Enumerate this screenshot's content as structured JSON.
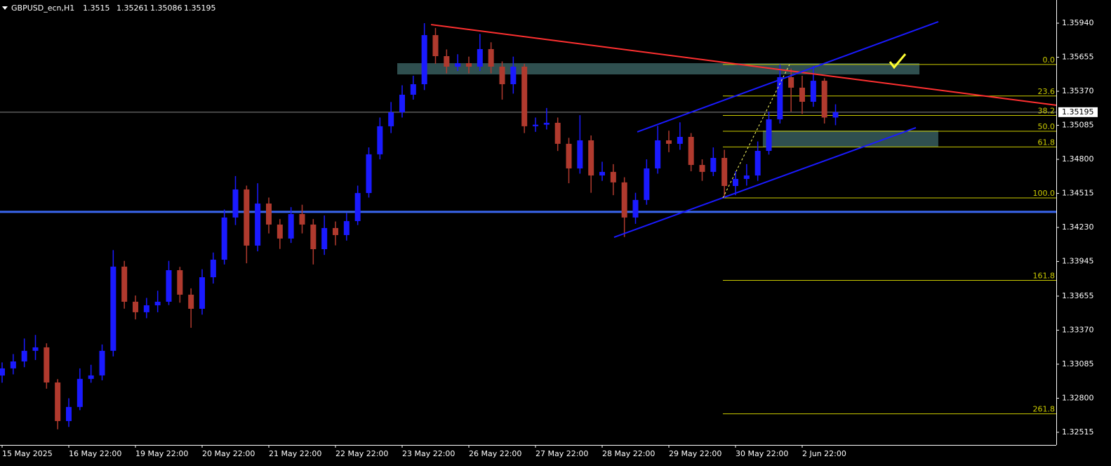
{
  "chart_data": {
    "type": "candlestick",
    "title": "GBPUSD_ecn,H1",
    "categories": [
      "15 May 2025",
      null,
      null,
      null,
      null,
      null,
      "16 May 22:00",
      null,
      null,
      null,
      null,
      null,
      "19 May 22:00",
      null,
      null,
      null,
      null,
      null,
      "20 May 22:00",
      null,
      null,
      null,
      null,
      null,
      "21 May 22:00",
      null,
      null,
      null,
      null,
      null,
      "22 May 22:00",
      null,
      null,
      null,
      null,
      null,
      "23 May 22:00",
      null,
      null,
      null,
      null,
      null,
      "26 May 22:00",
      null,
      null,
      null,
      null,
      null,
      "27 May 22:00",
      null,
      null,
      null,
      null,
      null,
      "28 May 22:00",
      null,
      null,
      null,
      null,
      null,
      "29 May 22:00",
      null,
      null,
      null,
      null,
      null,
      "30 May 22:00",
      null,
      null,
      null,
      null,
      null,
      "2 Jun 22:00",
      null,
      null,
      null
    ],
    "open": [
      1.3299,
      1.3305,
      1.33108,
      1.33197,
      1.33226,
      1.32932,
      1.32609,
      1.32727,
      1.32962,
      1.32991,
      1.33197,
      1.33902,
      1.33608,
      1.3352,
      1.33578,
      1.33608,
      1.33872,
      1.33667,
      1.33549,
      1.33813,
      1.3396,
      1.34313,
      1.34548,
      1.34078,
      1.3443,
      1.34254,
      1.34137,
      1.34342,
      1.34254,
      1.34048,
      1.34225,
      1.34166,
      1.34283,
      1.34518,
      1.34842,
      1.35077,
      1.35194,
      1.35341,
      1.35429,
      1.3584,
      1.35664,
      1.35576,
      1.35605,
      1.35576,
      1.35723,
      1.35576,
      1.35429,
      1.35576,
      1.35077,
      1.3509,
      1.35106,
      1.3493,
      1.34724,
      1.34959,
      1.34665,
      1.34695,
      1.34607,
      1.34313,
      1.3446,
      1.34724,
      1.34959,
      1.3493,
      1.34988,
      1.34753,
      1.34695,
      1.34812,
      1.34577,
      1.34636,
      1.34665,
      1.34871,
      1.35135,
      1.35488,
      1.354,
      1.35282,
      1.35458,
      1.3515
    ],
    "high": [
      1.331,
      1.3317,
      1.333,
      1.3333,
      1.3326,
      1.3296,
      1.328,
      1.3305,
      1.3308,
      1.3325,
      1.3404,
      1.3395,
      1.3366,
      1.3364,
      1.337,
      1.3395,
      1.339,
      1.3372,
      1.3388,
      1.3402,
      1.3438,
      1.3466,
      1.3458,
      1.346,
      1.3448,
      1.343,
      1.344,
      1.3442,
      1.343,
      1.3433,
      1.3428,
      1.3435,
      1.3458,
      1.349,
      1.3515,
      1.3528,
      1.3542,
      1.355,
      1.3594,
      1.359,
      1.3572,
      1.3568,
      1.3566,
      1.3585,
      1.3578,
      1.3562,
      1.3566,
      1.356,
      1.3515,
      1.3523,
      1.3515,
      1.3498,
      1.3517,
      1.35,
      1.3478,
      1.3476,
      1.3465,
      1.3452,
      1.348,
      1.3508,
      1.3504,
      1.3511,
      1.3502,
      1.348,
      1.349,
      1.3488,
      1.347,
      1.3476,
      1.3495,
      1.352,
      1.35594,
      1.3556,
      1.355,
      1.3558,
      1.3548,
      1.35261
    ],
    "low": [
      1.3293,
      1.33,
      1.3306,
      1.3312,
      1.3288,
      1.3254,
      1.3256,
      1.327,
      1.3293,
      1.3295,
      1.3315,
      1.3355,
      1.3346,
      1.3347,
      1.3352,
      1.3358,
      1.336,
      1.3339,
      1.335,
      1.3376,
      1.3392,
      1.3425,
      1.3393,
      1.3403,
      1.3418,
      1.3405,
      1.341,
      1.3418,
      1.3392,
      1.34,
      1.3408,
      1.3412,
      1.3425,
      1.3448,
      1.348,
      1.3502,
      1.3515,
      1.353,
      1.3538,
      1.356,
      1.3552,
      1.3554,
      1.3552,
      1.3554,
      1.3552,
      1.353,
      1.3535,
      1.3502,
      1.3503,
      1.3505,
      1.3487,
      1.346,
      1.3468,
      1.3452,
      1.3462,
      1.345,
      1.3415,
      1.3426,
      1.3442,
      1.3468,
      1.3486,
      1.3488,
      1.347,
      1.3462,
      1.3466,
      1.34477,
      1.345,
      1.3458,
      1.3462,
      1.3484,
      1.351,
      1.352,
      1.3518,
      1.3524,
      1.351,
      1.35086
    ],
    "close": [
      1.3305,
      1.33108,
      1.33197,
      1.33226,
      1.32932,
      1.32609,
      1.32727,
      1.32962,
      1.32991,
      1.33197,
      1.33902,
      1.33608,
      1.3352,
      1.33578,
      1.33608,
      1.33872,
      1.33667,
      1.33549,
      1.33813,
      1.3396,
      1.34313,
      1.34548,
      1.34078,
      1.3443,
      1.34254,
      1.34137,
      1.34342,
      1.34254,
      1.34048,
      1.34225,
      1.34166,
      1.34283,
      1.34518,
      1.34842,
      1.35077,
      1.35194,
      1.35341,
      1.35429,
      1.3584,
      1.35664,
      1.35576,
      1.35605,
      1.35576,
      1.35723,
      1.35576,
      1.35429,
      1.35576,
      1.35077,
      1.3509,
      1.35106,
      1.3493,
      1.34724,
      1.34959,
      1.34665,
      1.34695,
      1.34607,
      1.34313,
      1.3446,
      1.34724,
      1.34959,
      1.3493,
      1.34988,
      1.34753,
      1.34695,
      1.34812,
      1.34577,
      1.34636,
      1.34665,
      1.34871,
      1.35135,
      1.35488,
      1.354,
      1.35282,
      1.35458,
      1.3515,
      1.35195
    ],
    "up_color": "#1a1aff",
    "down_color": "#b03a2e",
    "ylim": [
      1.32409,
      1.36134
    ],
    "yticks": [
      {
        "value": 1.3594,
        "label": "1.35940"
      },
      1.35655,
      {
        "value": 1.3537,
        "label": "1.35370"
      },
      1.35085,
      {
        "value": 1.348,
        "label": "1.34800"
      },
      1.34515,
      {
        "value": 1.3423,
        "label": "1.34230"
      },
      1.33945,
      1.33655,
      {
        "value": 1.3337,
        "label": "1.33370"
      },
      1.33085,
      {
        "value": 1.328,
        "label": "1.32800"
      },
      1.32515
    ],
    "hlines": [
      {
        "price": 1.3436,
        "color": "#3a66ee"
      }
    ],
    "zones": [
      {
        "x": [
          35.56,
          82.55
        ],
        "y": [
          1.35605,
          1.35511
        ],
        "color": "#2f4f4f"
      },
      {
        "x": [
          68.46,
          84.25
        ],
        "y": [
          1.35041,
          1.34906
        ],
        "color": "#2f4f4f"
      }
    ],
    "trendlines": [
      {
        "color": "#ff3030",
        "x": [
          38.6,
          94.9
        ],
        "y": [
          1.35928,
          1.35253
        ]
      },
      {
        "color": "#1a1aff",
        "x": [
          55.07,
          82.23
        ],
        "y": [
          1.34148,
          1.35065
        ]
      },
      {
        "color": "#1a1aff",
        "x": [
          57.16,
          84.25
        ],
        "y": [
          1.3503,
          1.35952
        ]
      },
      {
        "color": "#ffff66",
        "x": [
          64.86,
          70.86
        ],
        "y": [
          1.34477,
          1.35594
        ],
        "dashed": true
      }
    ],
    "fibonacci": {
      "x": 64.86,
      "price_0": 1.35594,
      "price_100": 1.34477,
      "color": "#cccc00",
      "levels": [
        {
          "value": 0,
          "label": "0.0"
        },
        {
          "value": 23.6,
          "label": "23.6"
        },
        {
          "value": 38.2,
          "label": "38.2"
        },
        {
          "value": 50,
          "label": "50.0"
        },
        {
          "value": 61.8,
          "label": "61.8"
        },
        {
          "value": 100,
          "label": "100.0"
        },
        {
          "value": 161.8,
          "label": "161.8"
        },
        {
          "value": 261.8,
          "label": "261.8"
        }
      ]
    }
  }
}
